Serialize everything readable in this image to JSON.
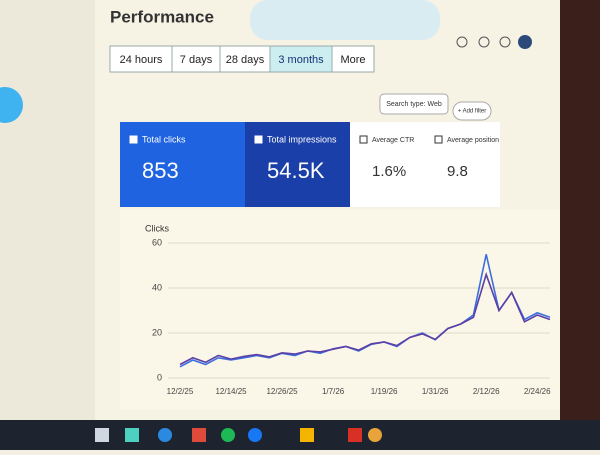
{
  "header": {
    "title": "Performance"
  },
  "date_filters": [
    "24 hours",
    "7 days",
    "28 days",
    "3 months",
    "More"
  ],
  "selected_filter": 3,
  "filters": {
    "search_type": "Search type: Web",
    "add_filter": "+ Add filter"
  },
  "metrics": [
    {
      "label": "Total clicks",
      "value": "853",
      "checked": true,
      "color": "#1f63e0"
    },
    {
      "label": "Total impressions",
      "value": "54.5K",
      "checked": true,
      "color": "#1b3fa8"
    },
    {
      "label": "Average CTR",
      "value": "1.6%",
      "checked": false,
      "color": "#ffffff"
    },
    {
      "label": "Average position",
      "value": "9.8",
      "checked": false,
      "color": "#ffffff"
    }
  ],
  "chart_data": {
    "type": "line",
    "y_label": "Clicks",
    "categories": [
      "12/2/25",
      null,
      null,
      null,
      "12/14/25",
      null,
      null,
      null,
      "12/26/25",
      null,
      null,
      null,
      "1/7/26",
      null,
      null,
      null,
      "1/19/26",
      null,
      null,
      null,
      "1/31/26",
      null,
      null,
      null,
      "2/12/26",
      null,
      null,
      null,
      "2/24/26",
      null
    ],
    "series": [
      {
        "color": "#3b6fe0",
        "values": [
          5,
          8,
          6,
          9,
          8,
          9,
          10,
          9,
          11,
          10,
          12,
          11,
          13,
          14,
          12,
          15,
          16,
          14,
          18,
          20,
          17,
          22,
          24,
          28,
          55,
          30,
          38,
          26,
          29,
          27
        ]
      },
      {
        "color": "#5b3fa6",
        "axis": "y2",
        "values": [
          300,
          450,
          350,
          500,
          420,
          480,
          520,
          470,
          560,
          530,
          600,
          580,
          640,
          700,
          620,
          760,
          800,
          720,
          900,
          980,
          860,
          1100,
          1200,
          1350,
          2300,
          1500,
          1900,
          1250,
          1400,
          1300
        ]
      }
    ],
    "ylim": [
      0,
      60
    ],
    "yticks": [
      0,
      20,
      40,
      60
    ],
    "y2lim": [
      0,
      3000
    ],
    "grid": true
  }
}
